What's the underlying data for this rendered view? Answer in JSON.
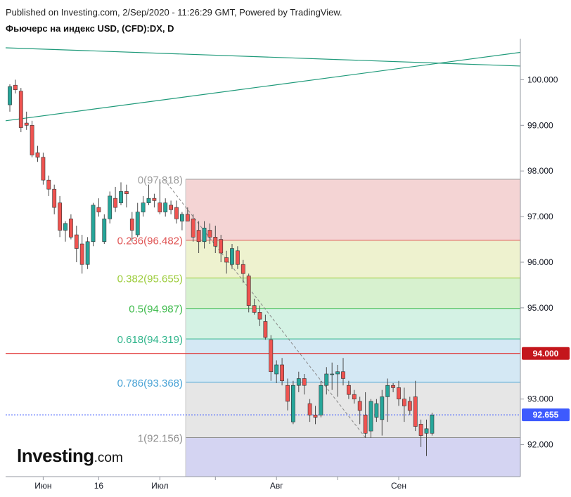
{
  "header": {
    "published": "Published on Investing.com, 2/Sep/2020 - 11:26:29 GMT, Powered by TradingView.",
    "symbol": "Фьючерс на индекс USD, (CFD):DX, D"
  },
  "logo": {
    "word": "Investing",
    "suffix": ".com"
  },
  "colors": {
    "up": "#26a69a",
    "down": "#ef5350",
    "trendline": "#1f9a7a",
    "axis": "#9598a1",
    "resistance": "#e03030",
    "price_label": "#3d5afe"
  },
  "chart_data": {
    "type": "candlestick",
    "title": "Фьючерс на индекс USD, (CFD):DX, D",
    "ylim": [
      91.3,
      100.9
    ],
    "y_ticks": [
      "100.000",
      "99.000",
      "98.000",
      "97.000",
      "96.000",
      "95.000",
      "93.000",
      "92.000"
    ],
    "x_ticks": [
      {
        "label": "Июн",
        "index": 6
      },
      {
        "label": "16",
        "index": 16
      },
      {
        "label": "Июл",
        "index": 27
      },
      {
        "label": "Авг",
        "index": 48
      },
      {
        "label": "Сен",
        "index": 70
      }
    ],
    "x_minor_ticks": [
      37,
      59
    ],
    "candles": [
      {
        "o": 99.45,
        "h": 99.9,
        "l": 99.3,
        "c": 99.85
      },
      {
        "o": 99.88,
        "h": 100.0,
        "l": 99.7,
        "c": 99.78
      },
      {
        "o": 99.75,
        "h": 99.82,
        "l": 98.85,
        "c": 98.95
      },
      {
        "o": 99.05,
        "h": 99.3,
        "l": 98.9,
        "c": 99.0
      },
      {
        "o": 99.0,
        "h": 99.1,
        "l": 98.3,
        "c": 98.35
      },
      {
        "o": 98.4,
        "h": 98.55,
        "l": 98.2,
        "c": 98.3
      },
      {
        "o": 98.3,
        "h": 98.4,
        "l": 97.7,
        "c": 97.8
      },
      {
        "o": 97.8,
        "h": 97.9,
        "l": 97.45,
        "c": 97.6
      },
      {
        "o": 97.6,
        "h": 97.7,
        "l": 97.05,
        "c": 97.2
      },
      {
        "o": 97.3,
        "h": 97.45,
        "l": 96.55,
        "c": 96.7
      },
      {
        "o": 96.7,
        "h": 96.9,
        "l": 96.45,
        "c": 96.85
      },
      {
        "o": 96.95,
        "h": 97.05,
        "l": 96.5,
        "c": 96.55
      },
      {
        "o": 96.6,
        "h": 96.8,
        "l": 96.0,
        "c": 96.3
      },
      {
        "o": 96.4,
        "h": 96.6,
        "l": 95.75,
        "c": 95.95
      },
      {
        "o": 95.95,
        "h": 96.55,
        "l": 95.85,
        "c": 96.45
      },
      {
        "o": 96.45,
        "h": 97.3,
        "l": 96.35,
        "c": 97.25
      },
      {
        "o": 97.2,
        "h": 97.4,
        "l": 97.0,
        "c": 97.1
      },
      {
        "o": 96.45,
        "h": 97.05,
        "l": 96.4,
        "c": 96.95
      },
      {
        "o": 96.95,
        "h": 97.55,
        "l": 96.85,
        "c": 97.45
      },
      {
        "o": 97.4,
        "h": 97.65,
        "l": 97.1,
        "c": 97.2
      },
      {
        "o": 97.3,
        "h": 97.75,
        "l": 97.25,
        "c": 97.55
      },
      {
        "o": 97.55,
        "h": 97.7,
        "l": 97.2,
        "c": 97.5
      },
      {
        "o": 96.95,
        "h": 97.1,
        "l": 96.45,
        "c": 96.7
      },
      {
        "o": 96.6,
        "h": 97.3,
        "l": 96.55,
        "c": 97.1
      },
      {
        "o": 97.1,
        "h": 97.45,
        "l": 97.0,
        "c": 97.3
      },
      {
        "o": 97.3,
        "h": 97.7,
        "l": 97.25,
        "c": 97.4
      },
      {
        "o": 97.4,
        "h": 97.5,
        "l": 97.2,
        "c": 97.35
      },
      {
        "o": 97.3,
        "h": 97.82,
        "l": 97.05,
        "c": 97.1
      },
      {
        "o": 97.1,
        "h": 97.4,
        "l": 97.0,
        "c": 97.3
      },
      {
        "o": 97.25,
        "h": 97.35,
        "l": 97.05,
        "c": 97.15
      },
      {
        "o": 97.2,
        "h": 97.35,
        "l": 96.85,
        "c": 96.95
      },
      {
        "o": 96.9,
        "h": 97.1,
        "l": 96.7,
        "c": 97.05
      },
      {
        "o": 97.05,
        "h": 97.2,
        "l": 96.9,
        "c": 96.9
      },
      {
        "o": 96.95,
        "h": 97.05,
        "l": 96.45,
        "c": 96.55
      },
      {
        "o": 96.7,
        "h": 96.9,
        "l": 96.2,
        "c": 96.45
      },
      {
        "o": 96.45,
        "h": 96.9,
        "l": 96.3,
        "c": 96.75
      },
      {
        "o": 96.7,
        "h": 96.85,
        "l": 96.4,
        "c": 96.55
      },
      {
        "o": 96.55,
        "h": 96.8,
        "l": 96.2,
        "c": 96.35
      },
      {
        "o": 96.5,
        "h": 96.6,
        "l": 96.0,
        "c": 96.2
      },
      {
        "o": 96.1,
        "h": 96.25,
        "l": 95.75,
        "c": 96.0
      },
      {
        "o": 95.95,
        "h": 96.4,
        "l": 95.85,
        "c": 96.3
      },
      {
        "o": 96.25,
        "h": 96.35,
        "l": 95.85,
        "c": 95.95
      },
      {
        "o": 95.95,
        "h": 96.05,
        "l": 95.55,
        "c": 95.75
      },
      {
        "o": 95.7,
        "h": 95.75,
        "l": 94.9,
        "c": 95.05
      },
      {
        "o": 95.05,
        "h": 95.2,
        "l": 94.85,
        "c": 94.9
      },
      {
        "o": 94.9,
        "h": 95.05,
        "l": 94.6,
        "c": 94.75
      },
      {
        "o": 94.7,
        "h": 94.85,
        "l": 94.3,
        "c": 94.35
      },
      {
        "o": 94.3,
        "h": 94.4,
        "l": 93.4,
        "c": 93.6
      },
      {
        "o": 93.55,
        "h": 93.85,
        "l": 93.35,
        "c": 93.75
      },
      {
        "o": 93.75,
        "h": 93.9,
        "l": 93.3,
        "c": 93.4
      },
      {
        "o": 93.3,
        "h": 93.45,
        "l": 92.75,
        "c": 92.95
      },
      {
        "o": 92.5,
        "h": 93.4,
        "l": 92.45,
        "c": 93.3
      },
      {
        "o": 93.3,
        "h": 93.6,
        "l": 93.15,
        "c": 93.45
      },
      {
        "o": 93.45,
        "h": 93.55,
        "l": 93.1,
        "c": 93.3
      },
      {
        "o": 92.9,
        "h": 93.0,
        "l": 92.5,
        "c": 92.65
      },
      {
        "o": 92.65,
        "h": 92.85,
        "l": 92.45,
        "c": 92.6
      },
      {
        "o": 92.65,
        "h": 93.4,
        "l": 92.6,
        "c": 93.3
      },
      {
        "o": 93.3,
        "h": 93.7,
        "l": 93.1,
        "c": 93.55
      },
      {
        "o": 93.55,
        "h": 93.8,
        "l": 93.2,
        "c": 93.55
      },
      {
        "o": 93.55,
        "h": 93.75,
        "l": 93.05,
        "c": 93.6
      },
      {
        "o": 93.6,
        "h": 93.9,
        "l": 93.3,
        "c": 93.45
      },
      {
        "o": 93.3,
        "h": 93.4,
        "l": 93.0,
        "c": 93.1
      },
      {
        "o": 93.1,
        "h": 93.2,
        "l": 92.9,
        "c": 93.0
      },
      {
        "o": 92.95,
        "h": 93.05,
        "l": 92.45,
        "c": 92.75
      },
      {
        "o": 92.65,
        "h": 93.15,
        "l": 92.15,
        "c": 92.25
      },
      {
        "o": 92.3,
        "h": 93.0,
        "l": 92.15,
        "c": 92.95
      },
      {
        "o": 92.6,
        "h": 93.0,
        "l": 92.5,
        "c": 92.9
      },
      {
        "o": 92.55,
        "h": 93.2,
        "l": 92.2,
        "c": 93.05
      },
      {
        "o": 93.05,
        "h": 93.45,
        "l": 92.5,
        "c": 93.3
      },
      {
        "o": 93.3,
        "h": 93.35,
        "l": 93.15,
        "c": 93.25
      },
      {
        "o": 93.25,
        "h": 93.4,
        "l": 92.85,
        "c": 93.0
      },
      {
        "o": 93.0,
        "h": 93.25,
        "l": 92.5,
        "c": 92.85
      },
      {
        "o": 92.95,
        "h": 93.05,
        "l": 92.65,
        "c": 92.75
      },
      {
        "o": 93.05,
        "h": 93.4,
        "l": 92.3,
        "c": 92.4
      },
      {
        "o": 92.45,
        "h": 92.55,
        "l": 91.95,
        "c": 92.2
      },
      {
        "o": 92.25,
        "h": 92.55,
        "l": 91.75,
        "c": 92.35
      },
      {
        "o": 92.25,
        "h": 92.7,
        "l": 92.2,
        "c": 92.65
      }
    ],
    "fib": {
      "levels": [
        {
          "ratio": 0,
          "price": 97.818,
          "label": "0(97.818)",
          "color": "#9e9e9e",
          "fill": "#f4d4d4"
        },
        {
          "ratio": 0.236,
          "price": 96.482,
          "label": "0.236(96.482)",
          "color": "#e05555",
          "fill": "#eef2cf"
        },
        {
          "ratio": 0.382,
          "price": 95.655,
          "label": "0.382(95.655)",
          "color": "#9ccc3a",
          "fill": "#d7f1cf"
        },
        {
          "ratio": 0.5,
          "price": 94.987,
          "label": "0.5(94.987)",
          "color": "#3cba4a",
          "fill": "#d4f2e4"
        },
        {
          "ratio": 0.618,
          "price": 94.319,
          "label": "0.618(94.319)",
          "color": "#2fb58b",
          "fill": "#d4e8f4"
        },
        {
          "ratio": 0.786,
          "price": 93.368,
          "label": "0.786(93.368)",
          "color": "#4aa3d6",
          "fill": "#e6e6e6"
        },
        {
          "ratio": 1,
          "price": 92.156,
          "label": "1(92.156)",
          "color": "#8f8f8f",
          "fill": "#d4d4f2"
        }
      ],
      "bottom_price": 91.3,
      "start_index": 28
    },
    "fib_trend": {
      "from": {
        "index": 28,
        "price": 97.818
      },
      "to": {
        "index": 64,
        "price": 92.156
      }
    },
    "trendlines": [
      {
        "from": {
          "index": 0,
          "price": 100.7
        },
        "to": {
          "index": 80,
          "price": 100.3
        }
      },
      {
        "from": {
          "index": 0,
          "price": 99.1
        },
        "to": {
          "index": 80,
          "price": 100.6
        }
      }
    ],
    "resistance": {
      "price": 94.0,
      "label": "94.000"
    },
    "last_price": {
      "price": 92.655,
      "label": "92.655"
    }
  }
}
